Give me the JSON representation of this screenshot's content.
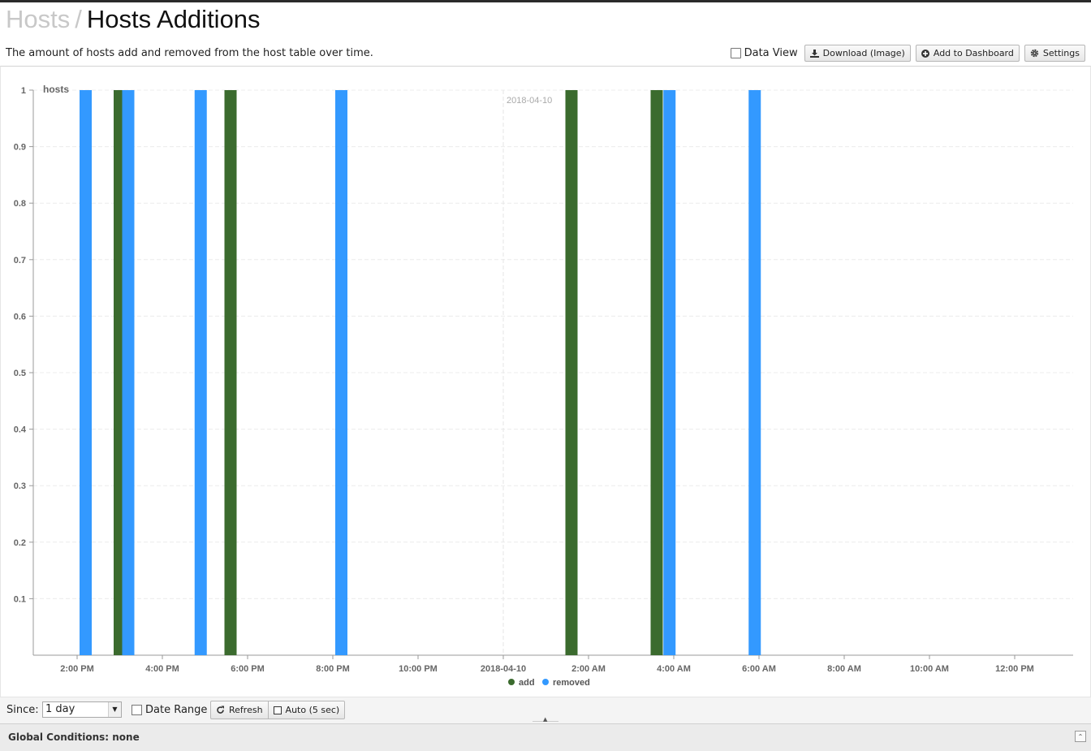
{
  "header": {
    "breadcrumb_root": "Hosts",
    "breadcrumb_separator": "/",
    "page_title": "Hosts Additions",
    "description": "The amount of hosts add and removed from the host table over time."
  },
  "toolbar": {
    "data_view_label": "Data View",
    "download_label": "Download (Image)",
    "add_dashboard_label": "Add to Dashboard",
    "settings_label": "Settings"
  },
  "footer": {
    "since_label": "Since:",
    "since_value": "1 day",
    "date_range_label": "Date Range",
    "refresh_label": "Refresh",
    "auto_label": "Auto (5 sec)",
    "global_conditions": "Global Conditions: none"
  },
  "chart_data": {
    "type": "bar",
    "ylabel": "hosts",
    "ylim": [
      0,
      1
    ],
    "y_ticks": [
      "0.1",
      "0.2",
      "0.3",
      "0.4",
      "0.5",
      "0.6",
      "0.7",
      "0.8",
      "0.9",
      "1"
    ],
    "x_ticks": [
      "2:00 PM",
      "4:00 PM",
      "6:00 PM",
      "8:00 PM",
      "10:00 PM",
      "2018-04-10",
      "2:00 AM",
      "4:00 AM",
      "6:00 AM",
      "8:00 AM",
      "10:00 AM",
      "12:00 PM"
    ],
    "x_range_hours": [
      13,
      37.3
    ],
    "day_marker": "2018-04-10",
    "grid": true,
    "legend_position": "bottom",
    "colors": {
      "add": "#3b6b2e",
      "removed": "#3399ff"
    },
    "series": [
      {
        "name": "add",
        "points": [
          {
            "hour": 15.0,
            "value": 1
          },
          {
            "hour": 17.6,
            "value": 1
          },
          {
            "hour": 25.6,
            "value": 1
          },
          {
            "hour": 27.6,
            "value": 1
          }
        ]
      },
      {
        "name": "removed",
        "points": [
          {
            "hour": 14.2,
            "value": 1
          },
          {
            "hour": 15.2,
            "value": 1
          },
          {
            "hour": 16.9,
            "value": 1
          },
          {
            "hour": 20.2,
            "value": 1
          },
          {
            "hour": 27.9,
            "value": 1
          },
          {
            "hour": 29.9,
            "value": 1
          }
        ]
      }
    ]
  }
}
